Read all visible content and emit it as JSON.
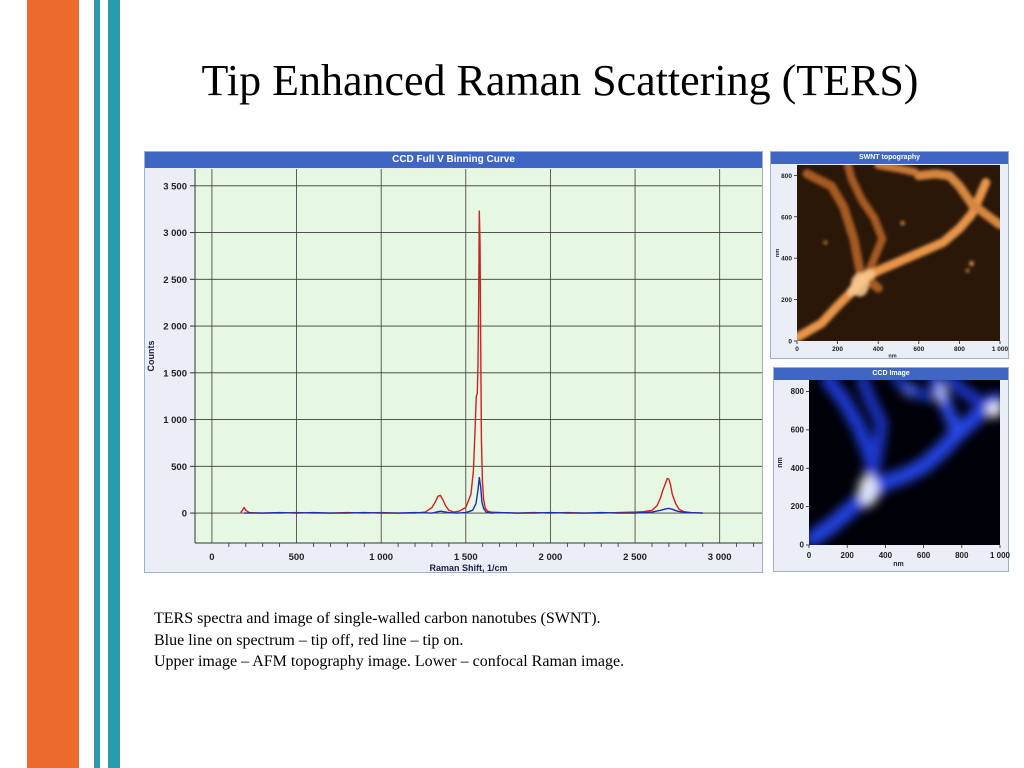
{
  "slide": {
    "title": "Tip Enhanced Raman Scattering (TERS)",
    "caption": [
      "TERS spectra and image of single-walled carbon nanotubes (SWNT).",
      "Blue line on spectrum – tip off, red line – tip on.",
      "Upper image – AFM topography image. Lower – confocal Raman image."
    ],
    "colors": {
      "stripe_orange": "#EC6A2C",
      "stripe_teal": "#2A9BAE",
      "panel_header": "#3f66c5",
      "plot_background": "#e6f8e1",
      "tip_on": "#d22020",
      "tip_off": "#1c2fb0"
    }
  },
  "chart_data": [
    {
      "type": "line",
      "title": "CCD Full V Binning Curve",
      "xlabel": "Raman Shift, 1/cm",
      "ylabel": "Counts",
      "xlim": [
        -100,
        3250
      ],
      "ylim": [
        -320,
        3680
      ],
      "xticks": [
        0,
        500,
        1000,
        1500,
        2000,
        2500,
        3000
      ],
      "xtick_labels": [
        "0",
        "500",
        "1 000",
        "1 500",
        "2 000",
        "2 500",
        "3 000"
      ],
      "yticks": [
        0,
        500,
        1000,
        1500,
        2000,
        2500,
        3000,
        3500
      ],
      "ytick_labels": [
        "0",
        "500",
        "1 000",
        "1 500",
        "2 000",
        "2 500",
        "3 000",
        "3 500"
      ],
      "grid": true,
      "series": [
        {
          "color": "#d22020",
          "x": [
            170,
            180,
            190,
            200,
            220,
            300,
            400,
            500,
            600,
            700,
            800,
            900,
            1000,
            1100,
            1200,
            1260,
            1300,
            1320,
            1335,
            1350,
            1365,
            1380,
            1400,
            1430,
            1460,
            1500,
            1530,
            1545,
            1555,
            1562,
            1568,
            1572,
            1576,
            1580,
            1584,
            1588,
            1592,
            1598,
            1605,
            1615,
            1630,
            1650,
            1700,
            1800,
            1900,
            2000,
            2100,
            2200,
            2300,
            2400,
            2500,
            2550,
            2600,
            2630,
            2650,
            2665,
            2680,
            2690,
            2700,
            2710,
            2720,
            2740,
            2760,
            2790,
            2830,
            2900
          ],
          "y": [
            5,
            30,
            60,
            30,
            5,
            0,
            0,
            5,
            0,
            0,
            5,
            0,
            5,
            0,
            0,
            10,
            60,
            120,
            180,
            190,
            140,
            80,
            30,
            10,
            20,
            60,
            200,
            450,
            900,
            1250,
            1280,
            1600,
            2300,
            3230,
            2900,
            1800,
            800,
            350,
            150,
            50,
            20,
            10,
            5,
            0,
            5,
            0,
            5,
            0,
            0,
            5,
            10,
            15,
            30,
            80,
            160,
            250,
            320,
            370,
            360,
            300,
            200,
            100,
            40,
            15,
            5,
            0
          ]
        },
        {
          "color": "#1c2fb0",
          "x": [
            190,
            300,
            400,
            500,
            600,
            700,
            800,
            900,
            1000,
            1100,
            1200,
            1300,
            1350,
            1400,
            1450,
            1500,
            1540,
            1560,
            1572,
            1580,
            1588,
            1595,
            1605,
            1620,
            1650,
            1700,
            1800,
            1900,
            2000,
            2100,
            2200,
            2300,
            2400,
            2500,
            2600,
            2650,
            2680,
            2700,
            2720,
            2750,
            2800,
            2900
          ],
          "y": [
            0,
            0,
            5,
            0,
            5,
            0,
            0,
            5,
            0,
            0,
            5,
            0,
            20,
            5,
            0,
            5,
            30,
            100,
            250,
            380,
            280,
            120,
            50,
            10,
            0,
            5,
            0,
            0,
            5,
            0,
            0,
            5,
            0,
            0,
            10,
            30,
            45,
            50,
            40,
            20,
            5,
            0
          ]
        }
      ]
    },
    {
      "type": "heatmap",
      "title": "SWNT topography",
      "xlabel": "nm",
      "ylabel": "nm",
      "xticks": [
        0,
        200,
        400,
        600,
        800,
        1000
      ],
      "xtick_labels": [
        "0",
        "200",
        "400",
        "600",
        "800",
        "1 000"
      ],
      "yticks": [
        0,
        200,
        400,
        600,
        800
      ],
      "ytick_labels": [
        "0",
        "200",
        "400",
        "600",
        "800"
      ],
      "colormap": [
        "#2a1406",
        "#f6c488"
      ]
    },
    {
      "type": "heatmap",
      "title": "CCD Image",
      "xlabel": "nm",
      "ylabel": "nm",
      "xticks": [
        0,
        200,
        400,
        600,
        800,
        1000
      ],
      "xtick_labels": [
        "0",
        "200",
        "400",
        "600",
        "800",
        "1 000"
      ],
      "yticks": [
        0,
        200,
        400,
        600,
        800
      ],
      "ytick_labels": [
        "0",
        "200",
        "400",
        "600",
        "800"
      ],
      "colormap": [
        "#000005",
        "#ffffff"
      ]
    }
  ]
}
